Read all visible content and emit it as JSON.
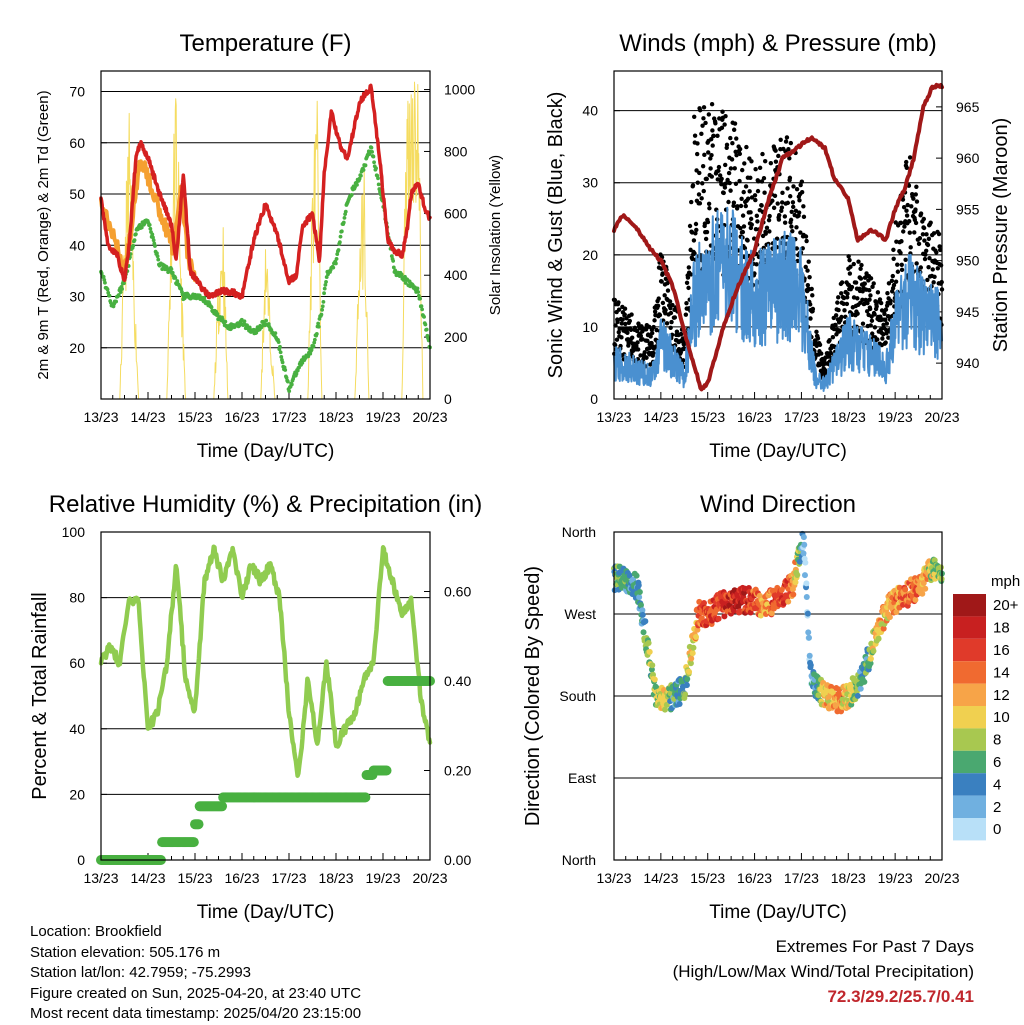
{
  "chart_data": [
    {
      "type": "line",
      "title": "Temperature (F)",
      "xlabel": "Time (Day/UTC)",
      "ylabel": "2m & 9m T (Red, Orange) & 2m Td (Green)",
      "ylabel_right": "Solar Insolation (Yellow)",
      "x_ticks": [
        "13/23",
        "14/23",
        "15/23",
        "16/23",
        "17/23",
        "18/23",
        "19/23",
        "20/23"
      ],
      "xlim": [
        0,
        7
      ],
      "ylim": [
        10,
        74
      ],
      "y_ticks": [
        20,
        30,
        40,
        50,
        60,
        70
      ],
      "ylim_right": [
        0,
        1060
      ],
      "y_ticks_right": [
        0,
        200,
        400,
        600,
        800,
        1000
      ],
      "grid": true,
      "colors": {
        "t2m": "#d42020",
        "t9m": "#f5a030",
        "td2m": "#48b040",
        "solar": "#f5dc60"
      },
      "series": [
        {
          "key": "t2m",
          "axis": "left",
          "x": [
            0,
            0.15,
            0.35,
            0.5,
            0.6,
            0.75,
            0.85,
            1.0,
            1.25,
            1.5,
            1.6,
            1.75,
            1.9,
            2.05,
            2.2,
            2.35,
            2.5,
            2.75,
            3.0,
            3.25,
            3.5,
            3.75,
            4.0,
            4.15,
            4.3,
            4.5,
            4.65,
            4.75,
            4.9,
            5.1,
            5.25,
            5.5,
            5.75,
            5.95,
            6.1,
            6.25,
            6.4,
            6.5,
            6.6,
            6.75,
            6.9,
            7.0
          ],
          "y": [
            49,
            40,
            38,
            33,
            40,
            58,
            60,
            57,
            50,
            44,
            37,
            54,
            35,
            33,
            31,
            30,
            31,
            31,
            30,
            41,
            48,
            42,
            33,
            34,
            44,
            46,
            37,
            54,
            66,
            59,
            57,
            68,
            71,
            55,
            41,
            39,
            38,
            42,
            50,
            52,
            47,
            45
          ]
        },
        {
          "key": "t9m",
          "axis": "left",
          "x": [
            0,
            0.3,
            0.5,
            0.65,
            0.85,
            1.55,
            1.7,
            1.85,
            2.0
          ],
          "y": [
            48,
            41,
            35,
            44,
            57,
            39,
            52,
            37,
            34
          ]
        },
        {
          "key": "td2m",
          "axis": "left",
          "x": [
            0,
            0.25,
            0.5,
            0.75,
            1.0,
            1.25,
            1.5,
            1.75,
            2.0,
            2.25,
            2.5,
            2.75,
            3.0,
            3.25,
            3.5,
            3.75,
            4.0,
            4.25,
            4.5,
            4.7,
            4.8,
            5.0,
            5.25,
            5.5,
            5.75,
            6.0,
            6.25,
            6.5,
            6.75,
            7.0
          ],
          "y": [
            35,
            28,
            33,
            43,
            45,
            36,
            35,
            30,
            30,
            29,
            26,
            24,
            25,
            23,
            25,
            22,
            12,
            17,
            20,
            27,
            34,
            37,
            49,
            53,
            59,
            48,
            35,
            33,
            31,
            20
          ]
        },
        {
          "key": "solar",
          "axis": "right",
          "x": [
            0.4,
            0.5,
            0.6,
            0.7,
            0.8,
            1.4,
            1.5,
            1.6,
            1.7,
            1.8,
            2.4,
            2.5,
            2.6,
            2.7,
            3.4,
            3.5,
            3.6,
            3.7,
            4.4,
            4.5,
            4.6,
            4.7,
            5.4,
            5.5,
            5.6,
            5.7,
            6.4,
            6.5,
            6.6,
            6.75,
            6.85
          ],
          "y": [
            0,
            520,
            860,
            400,
            0,
            0,
            620,
            1000,
            450,
            0,
            0,
            380,
            560,
            0,
            0,
            520,
            250,
            0,
            0,
            700,
            900,
            0,
            0,
            500,
            700,
            0,
            0,
            950,
            1060,
            1000,
            0
          ]
        }
      ]
    },
    {
      "type": "scatter",
      "title": "Winds (mph) & Pressure (mb)",
      "xlabel": "Time (Day/UTC)",
      "ylabel": "Sonic Wind & Gust (Blue, Black)",
      "ylabel_right": "Station Pressure (Maroon)",
      "x_ticks": [
        "13/23",
        "14/23",
        "15/23",
        "16/23",
        "17/23",
        "18/23",
        "19/23",
        "20/23"
      ],
      "xlim": [
        0,
        7
      ],
      "ylim": [
        0,
        45.5
      ],
      "y_ticks": [
        0,
        10,
        20,
        30,
        40
      ],
      "ylim_right": [
        936.5,
        968.5
      ],
      "y_ticks_right": [
        940,
        945,
        950,
        955,
        960,
        965
      ],
      "grid": true,
      "colors": {
        "wind": "#4a90d0",
        "gust": "#000000",
        "pressure": "#a01818"
      },
      "series": [
        {
          "key": "wind",
          "axis": "left",
          "x": [
            0,
            0.5,
            0.8,
            1.0,
            1.2,
            1.5,
            1.7,
            2.0,
            2.5,
            3.0,
            3.5,
            3.8,
            4.0,
            4.3,
            4.5,
            5.0,
            5.5,
            5.8,
            6.0,
            6.3,
            6.5,
            7.0
          ],
          "y": [
            5,
            4,
            3,
            8,
            6,
            3,
            13,
            17,
            18,
            14,
            15,
            16,
            14,
            3,
            2,
            8,
            6,
            4,
            10,
            14,
            12,
            10
          ]
        },
        {
          "key": "gust",
          "axis": "left",
          "x": [
            0,
            0.5,
            0.8,
            1.0,
            1.2,
            1.5,
            1.7,
            2.0,
            2.5,
            3.0,
            3.5,
            3.8,
            4.0,
            4.3,
            4.5,
            5.0,
            5.5,
            5.8,
            6.0,
            6.3,
            6.5,
            7.0
          ],
          "y": [
            10,
            8,
            7,
            15,
            12,
            6,
            28,
            30,
            28,
            24,
            26,
            26,
            22,
            7,
            4,
            15,
            12,
            9,
            18,
            25,
            20,
            16
          ]
        },
        {
          "key": "pressure",
          "axis": "right",
          "x": [
            0,
            0.2,
            0.5,
            0.8,
            1.0,
            1.3,
            1.5,
            1.7,
            1.85,
            2.0,
            2.3,
            2.6,
            3.0,
            3.3,
            3.6,
            3.9,
            4.2,
            4.5,
            4.7,
            5.0,
            5.2,
            5.5,
            5.8,
            6.0,
            6.2,
            6.4,
            6.6,
            6.8,
            7.0
          ],
          "y": [
            953,
            954.5,
            953,
            951,
            950,
            947,
            943,
            940,
            937.5,
            938,
            943,
            947,
            951,
            956,
            960,
            961,
            962,
            961,
            958,
            956,
            952,
            953,
            952,
            955,
            957,
            960,
            965,
            967,
            967
          ]
        }
      ]
    },
    {
      "type": "line",
      "title": "Relative Humidity (%) & Precipitation (in)",
      "xlabel": "Time (Day/UTC)",
      "ylabel": "Percent & Total Rainfall",
      "x_ticks": [
        "13/23",
        "14/23",
        "15/23",
        "16/23",
        "17/23",
        "18/23",
        "19/23",
        "20/23"
      ],
      "xlim": [
        0,
        7
      ],
      "ylim": [
        0,
        100
      ],
      "y_ticks": [
        0,
        20,
        40,
        60,
        80,
        100
      ],
      "ylim_right": [
        0,
        0.733
      ],
      "y_ticks_right": [
        "0.00",
        "0.20",
        "0.40",
        "0.60"
      ],
      "grid": true,
      "colors": {
        "rh": "#90cc50",
        "precip": "#48b040"
      },
      "series": [
        {
          "key": "rh",
          "axis": "left",
          "x": [
            0,
            0.2,
            0.4,
            0.6,
            0.8,
            1.0,
            1.2,
            1.4,
            1.6,
            1.8,
            2.0,
            2.2,
            2.4,
            2.6,
            2.8,
            3.0,
            3.2,
            3.4,
            3.6,
            3.8,
            4.0,
            4.2,
            4.4,
            4.6,
            4.8,
            5.0,
            5.2,
            5.4,
            5.6,
            5.8,
            6.0,
            6.2,
            6.4,
            6.6,
            6.8,
            7.0
          ],
          "y": [
            60,
            65,
            60,
            80,
            78,
            40,
            45,
            60,
            90,
            55,
            45,
            85,
            95,
            85,
            95,
            80,
            90,
            85,
            90,
            80,
            45,
            25,
            55,
            35,
            60,
            35,
            40,
            45,
            55,
            60,
            95,
            85,
            75,
            80,
            50,
            35
          ]
        },
        {
          "key": "precip",
          "axis": "right",
          "x": [
            0,
            0.5,
            1.0,
            1.2,
            1.3,
            1.8,
            2.0,
            2.1,
            2.2,
            2.6,
            3.0,
            4.0,
            5.0,
            5.6,
            5.65,
            5.8,
            6.0,
            6.1,
            6.2,
            6.5,
            7.0
          ],
          "y": [
            0,
            0,
            0,
            0,
            0.04,
            0.04,
            0.08,
            0.12,
            0.12,
            0.14,
            0.14,
            0.14,
            0.14,
            0.14,
            0.19,
            0.2,
            0.2,
            0.4,
            0.4,
            0.4,
            0.4
          ]
        }
      ]
    },
    {
      "type": "scatter",
      "title": "Wind Direction",
      "xlabel": "Time (Day/UTC)",
      "ylabel": "Direction (Colored By Speed)",
      "x_ticks": [
        "13/23",
        "14/23",
        "15/23",
        "16/23",
        "17/23",
        "18/23",
        "19/23",
        "20/23"
      ],
      "xlim": [
        0,
        7
      ],
      "y_ticks": [
        "North",
        "East",
        "South",
        "West",
        "North"
      ],
      "ylim": [
        0,
        360
      ],
      "grid": true,
      "colorbar": {
        "title": "mph",
        "labels": [
          "20+",
          "18",
          "16",
          "14",
          "12",
          "10",
          "8",
          "6",
          "4",
          "2",
          "0"
        ],
        "colors": [
          "#a01818",
          "#c82020",
          "#e03a2a",
          "#f06a30",
          "#f7a448",
          "#f0d050",
          "#a8c850",
          "#4aa870",
          "#3a80c0",
          "#70b0e0",
          "#b8e0f8"
        ]
      },
      "series": [
        {
          "key": "direction",
          "x": [
            0.1,
            0.3,
            0.5,
            0.9,
            1.1,
            1.3,
            1.5,
            1.8,
            2.0,
            2.3,
            2.6,
            2.9,
            3.2,
            3.5,
            3.8,
            4.05,
            4.2,
            4.5,
            4.8,
            5.0,
            5.3,
            5.6,
            5.9,
            6.2,
            6.5,
            6.8
          ],
          "y": [
            310,
            305,
            300,
            180,
            175,
            180,
            190,
            270,
            270,
            280,
            285,
            285,
            280,
            285,
            300,
            350,
            200,
            180,
            175,
            180,
            200,
            250,
            280,
            290,
            300,
            320
          ],
          "speed": [
            6,
            4,
            4,
            8,
            10,
            4,
            6,
            14,
            16,
            16,
            18,
            16,
            12,
            16,
            14,
            2,
            2,
            10,
            12,
            10,
            4,
            10,
            12,
            14,
            14,
            8
          ]
        }
      ]
    }
  ],
  "info": {
    "location": "Location: Brookfield",
    "elevation": "Station elevation: 505.176 m",
    "latlon": "Station lat/lon: 42.7959; -75.2993",
    "created": "Figure created on Sun, 2025-04-20, at 23:40 UTC",
    "recent": "Most recent data timestamp: 2025/04/20 23:15:00"
  },
  "extremes": {
    "heading": "Extremes For Past 7 Days",
    "subheading": "(High/Low/Max Wind/Total Precipitation)",
    "values": "72.3/29.2/25.7/0.41"
  }
}
